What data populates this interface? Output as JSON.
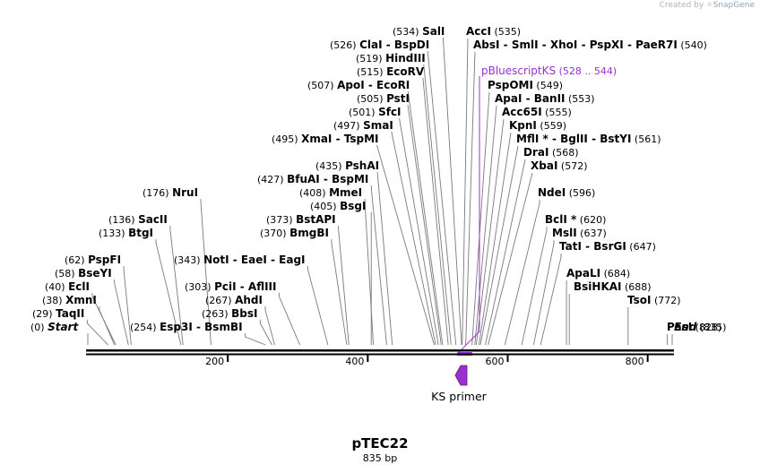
{
  "watermark": {
    "prefix": "Created by",
    "brand": "SnapGene"
  },
  "plasmid": {
    "name": "pTEC22",
    "length_label": "835 bp",
    "length_bp": 835
  },
  "scale_ticks": [
    "200",
    "400",
    "600",
    "800"
  ],
  "feature": {
    "label": "pBluescriptKS",
    "range": "(528 .. 544)",
    "start_bp": 528,
    "end_bp": 544,
    "color": "#9b30d0"
  },
  "primer": {
    "label": "KS primer",
    "color": "#9b30d0",
    "direction": "reverse"
  },
  "sites": [
    {
      "bp": 0,
      "pos": "(0)",
      "names": [
        "Start"
      ],
      "italic": true
    },
    {
      "bp": 29,
      "pos": "(29)",
      "names": [
        "TaqII"
      ]
    },
    {
      "bp": 38,
      "pos": "(38)",
      "names": [
        "XmnI"
      ]
    },
    {
      "bp": 40,
      "pos": "(40)",
      "names": [
        "EclI"
      ]
    },
    {
      "bp": 58,
      "pos": "(58)",
      "names": [
        "BseYI"
      ]
    },
    {
      "bp": 62,
      "pos": "(62)",
      "names": [
        "PspFI"
      ]
    },
    {
      "bp": 133,
      "pos": "(133)",
      "names": [
        "BtgI"
      ]
    },
    {
      "bp": 136,
      "pos": "(136)",
      "names": [
        "SacII"
      ]
    },
    {
      "bp": 176,
      "pos": "(176)",
      "names": [
        "NruI"
      ]
    },
    {
      "bp": 254,
      "pos": "(254)",
      "names": [
        "Esp3I",
        "BsmBI"
      ]
    },
    {
      "bp": 263,
      "pos": "(263)",
      "names": [
        "BbsI"
      ]
    },
    {
      "bp": 267,
      "pos": "(267)",
      "names": [
        "AhdI"
      ]
    },
    {
      "bp": 303,
      "pos": "(303)",
      "names": [
        "PciI",
        "AflIII"
      ]
    },
    {
      "bp": 343,
      "pos": "(343)",
      "names": [
        "NotI",
        "EaeI",
        "EagI"
      ]
    },
    {
      "bp": 370,
      "pos": "(370)",
      "names": [
        "BmgBI"
      ]
    },
    {
      "bp": 373,
      "pos": "(373)",
      "names": [
        "BstAPI"
      ]
    },
    {
      "bp": 405,
      "pos": "(405)",
      "names": [
        "BsgI"
      ]
    },
    {
      "bp": 408,
      "pos": "(408)",
      "names": [
        "MmeI"
      ]
    },
    {
      "bp": 427,
      "pos": "(427)",
      "names": [
        "BfuAI",
        "BspMI"
      ]
    },
    {
      "bp": 435,
      "pos": "(435)",
      "names": [
        "PshAI"
      ]
    },
    {
      "bp": 495,
      "pos": "(495)",
      "names": [
        "XmaI",
        "TspMI"
      ]
    },
    {
      "bp": 497,
      "pos": "(497)",
      "names": [
        "SmaI"
      ]
    },
    {
      "bp": 501,
      "pos": "(501)",
      "names": [
        "SfcI"
      ]
    },
    {
      "bp": 505,
      "pos": "(505)",
      "names": [
        "PstI"
      ]
    },
    {
      "bp": 507,
      "pos": "(507)",
      "names": [
        "ApoI",
        "EcoRI"
      ]
    },
    {
      "bp": 515,
      "pos": "(515)",
      "names": [
        "EcoRV"
      ]
    },
    {
      "bp": 519,
      "pos": "(519)",
      "names": [
        "HindIII"
      ]
    },
    {
      "bp": 526,
      "pos": "(526)",
      "names": [
        "ClaI",
        "BspDI"
      ]
    },
    {
      "bp": 534,
      "pos": "(534)",
      "names": [
        "SalI"
      ]
    },
    {
      "bp": 535,
      "pos": "(535)",
      "names": [
        "AccI"
      ]
    },
    {
      "bp": 540,
      "pos": "(540)",
      "names": [
        "AbsI",
        "SmlI",
        "XhoI",
        "PspXI",
        "PaeR7I"
      ]
    },
    {
      "bp": 549,
      "pos": "(549)",
      "names": [
        "PspOMI"
      ]
    },
    {
      "bp": 553,
      "pos": "(553)",
      "names": [
        "ApaI",
        "BanII"
      ]
    },
    {
      "bp": 555,
      "pos": "(555)",
      "names": [
        "Acc65I"
      ]
    },
    {
      "bp": 559,
      "pos": "(559)",
      "names": [
        "KpnI"
      ]
    },
    {
      "bp": 561,
      "pos": "(561)",
      "names": [
        "MflI *",
        "BglII",
        "BstYI"
      ]
    },
    {
      "bp": 568,
      "pos": "(568)",
      "names": [
        "DraI"
      ]
    },
    {
      "bp": 572,
      "pos": "(572)",
      "names": [
        "XbaI"
      ]
    },
    {
      "bp": 596,
      "pos": "(596)",
      "names": [
        "NdeI"
      ]
    },
    {
      "bp": 620,
      "pos": "(620)",
      "names": [
        "BclI *"
      ]
    },
    {
      "bp": 637,
      "pos": "(637)",
      "names": [
        "MslI"
      ]
    },
    {
      "bp": 647,
      "pos": "(647)",
      "names": [
        "TatI",
        "BsrGI"
      ]
    },
    {
      "bp": 684,
      "pos": "(684)",
      "names": [
        "ApaLI"
      ]
    },
    {
      "bp": 688,
      "pos": "(688)",
      "names": [
        "BsiHKAI"
      ]
    },
    {
      "bp": 772,
      "pos": "(772)",
      "names": [
        "TsoI"
      ]
    },
    {
      "bp": 828,
      "pos": "(828)",
      "names": [
        "PasI"
      ]
    },
    {
      "bp": 835,
      "pos": "(835)",
      "names": [
        "End"
      ],
      "italic": true
    }
  ]
}
